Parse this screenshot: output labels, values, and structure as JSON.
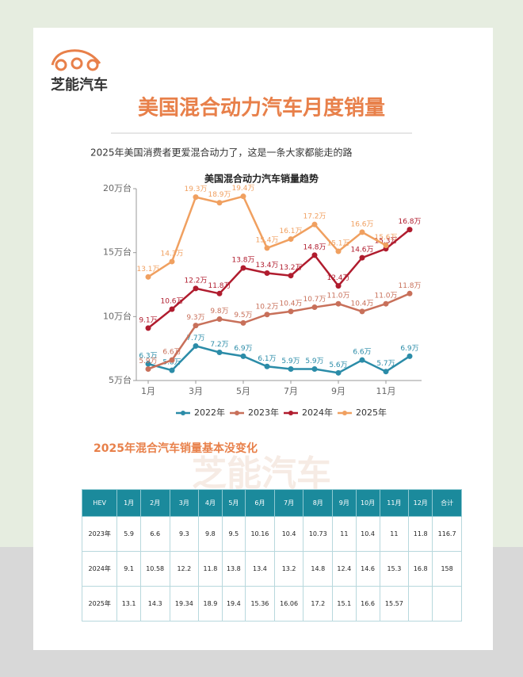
{
  "brand": "芝能汽车",
  "title": "美国混合动力汽车月度销量",
  "subtitle": "2025年美国消费者更爱混合动力了，这是一条大家都能走的路",
  "chart_data": {
    "type": "line",
    "title": "美国混合动力汽车销量趋势",
    "x": [
      1,
      2,
      3,
      4,
      5,
      6,
      7,
      8,
      9,
      10,
      11,
      12
    ],
    "xlim": [
      0.5,
      12.5
    ],
    "xticks": [
      {
        "value": 1,
        "label": "1月"
      },
      {
        "value": 3,
        "label": "3月"
      },
      {
        "value": 5,
        "label": "5月"
      },
      {
        "value": 7,
        "label": "7月"
      },
      {
        "value": 9,
        "label": "9月"
      },
      {
        "value": 11,
        "label": "11月"
      }
    ],
    "ylim": [
      5,
      20
    ],
    "yticks": [
      {
        "value": 5,
        "label": "5万台"
      },
      {
        "value": 10,
        "label": "10万台"
      },
      {
        "value": 15,
        "label": "15万台"
      },
      {
        "value": 20,
        "label": "20万台"
      }
    ],
    "series": [
      {
        "name": "2022年",
        "color": "#2b8ca8",
        "values": [
          6.3,
          5.8,
          7.7,
          7.2,
          6.9,
          6.1,
          5.9,
          5.9,
          5.6,
          6.6,
          5.7,
          6.9
        ],
        "value_labels": [
          "6.3万",
          "5.8万",
          "7.7万",
          "7.2万",
          "6.9万",
          "6.1万",
          "5.9万",
          "5.9万",
          "5.6万",
          "6.6万",
          "5.7万",
          "6.9万"
        ]
      },
      {
        "name": "2023年",
        "color": "#c8705a",
        "values": [
          5.9,
          6.6,
          9.3,
          9.8,
          9.5,
          10.16,
          10.4,
          10.73,
          11,
          10.4,
          11,
          11.8
        ],
        "value_labels": [
          "5.9万",
          "6.6万",
          "9.3万",
          "9.8万",
          "9.5万",
          "10.2万",
          "10.4万",
          "10.7万",
          "11.0万",
          "10.4万",
          "11.0万",
          "11.8万"
        ]
      },
      {
        "name": "2024年",
        "color": "#b01c2e",
        "values": [
          9.1,
          10.58,
          12.2,
          11.8,
          13.8,
          13.4,
          13.2,
          14.8,
          12.4,
          14.6,
          15.3,
          16.8
        ],
        "value_labels": [
          "9.1万",
          "10.6万",
          "12.2万",
          "11.8万",
          "13.8万",
          "13.4万",
          "13.2万",
          "14.8万",
          "12.4万",
          "14.6万",
          "15.3万",
          "16.8万"
        ]
      },
      {
        "name": "2025年",
        "color": "#f0a060",
        "values": [
          13.1,
          14.3,
          19.34,
          18.9,
          19.4,
          15.36,
          16.06,
          17.2,
          15.1,
          16.6,
          15.57,
          null
        ],
        "value_labels": [
          "13.1万",
          "14.3万",
          "19.3万",
          "18.9万",
          "19.4万",
          "15.4万",
          "16.1万",
          "17.2万",
          "15.1万",
          "16.6万",
          "15.6万",
          null
        ]
      }
    ]
  },
  "section_title": "2025年混合汽车销量基本没变化",
  "watermark": "芝能汽车",
  "table": {
    "header": [
      "HEV",
      "1月",
      "2月",
      "3月",
      "4月",
      "5月",
      "6月",
      "7月",
      "8月",
      "9月",
      "10月",
      "11月",
      "12月",
      "合计"
    ],
    "rows": [
      [
        "2023年",
        5.9,
        6.6,
        9.3,
        9.8,
        9.5,
        10.16,
        10.4,
        10.73,
        11,
        10.4,
        11,
        11.8,
        116.7
      ],
      [
        "2024年",
        9.1,
        10.58,
        12.2,
        11.8,
        13.8,
        13.4,
        13.2,
        14.8,
        12.4,
        14.6,
        15.3,
        16.8,
        158
      ],
      [
        "2025年",
        13.1,
        14.3,
        19.34,
        18.9,
        19.4,
        15.36,
        16.06,
        17.2,
        15.1,
        16.6,
        15.57,
        null,
        null
      ]
    ]
  }
}
